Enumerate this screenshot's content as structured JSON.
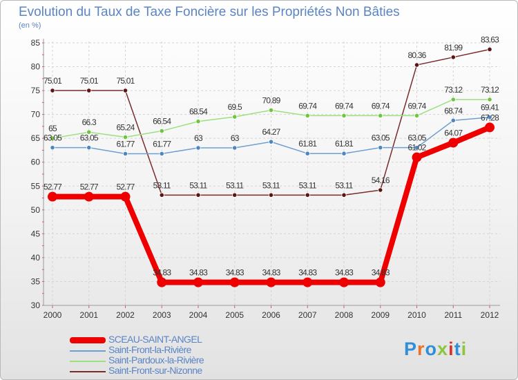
{
  "title": "Evolution du Taux de Taxe Foncière sur les Propriétés Non Bâties",
  "unit_label": "(en %)",
  "logo": {
    "text": "Proxiti",
    "colors": [
      "#2f8fd6",
      "#e8742a",
      "#2f8fd6",
      "#8cc63f",
      "#d9302a",
      "#2f8fd6",
      "#8cc63f"
    ]
  },
  "chart_data": {
    "type": "line",
    "x": [
      "2000",
      "2001",
      "2002",
      "2003",
      "2004",
      "2005",
      "2006",
      "2007",
      "2008",
      "2009",
      "2010",
      "2011",
      "2012"
    ],
    "ylim": [
      30,
      85
    ],
    "yticks": [
      30,
      35,
      40,
      45,
      50,
      55,
      60,
      65,
      70,
      75,
      80,
      85
    ],
    "grid": true,
    "series": [
      {
        "name": "SCEAU-SAINT-ANGEL",
        "color": "#ee0000",
        "dot": "#ee0000",
        "thick": true,
        "values": [
          52.77,
          52.77,
          52.77,
          34.83,
          34.83,
          34.83,
          34.83,
          34.83,
          34.83,
          34.83,
          61.02,
          64.07,
          67.28
        ],
        "labels": [
          "52.77",
          "52.77",
          "52.77",
          "34.83",
          "34.83",
          "34.83",
          "34.83",
          "34.83",
          "34.83",
          "34.83",
          "61.02",
          "64.07",
          "67.28"
        ]
      },
      {
        "name": "Saint-Front-la-Rivière",
        "color": "#6d9fd0",
        "dot": "#4f86c2",
        "values": [
          63.05,
          63.05,
          61.77,
          61.77,
          63,
          63,
          64.27,
          61.81,
          61.81,
          63.05,
          63.05,
          68.74,
          69.41
        ],
        "labels": [
          "63.05",
          "63.05",
          "61.77",
          "61.77",
          "63",
          "63",
          "64.27",
          "61.81",
          "61.81",
          "63.05",
          "63.05",
          "68.74",
          "69.41"
        ]
      },
      {
        "name": "Saint-Pardoux-la-Rivière",
        "color": "#9be07e",
        "dot": "#6fc441",
        "values": [
          65,
          66.3,
          65.24,
          66.54,
          68.54,
          69.5,
          70.89,
          69.74,
          69.74,
          69.74,
          69.74,
          73.12,
          73.12
        ],
        "labels": [
          "65",
          "66.3",
          "65.24",
          "66.54",
          "68.54",
          "69.5",
          "70.89",
          "69.74",
          "69.74",
          "69.74",
          "69.74",
          "73.12",
          "73.12"
        ]
      },
      {
        "name": "Saint-Front-sur-Nizonne",
        "color": "#7a2a2a",
        "dot": "#5a1515",
        "values": [
          75.01,
          75.01,
          75.01,
          53.11,
          53.11,
          53.11,
          53.11,
          53.11,
          53.11,
          54.16,
          80.36,
          81.99,
          83.63
        ],
        "labels": [
          "75.01",
          "75.01",
          "75.01",
          "53.11",
          "53.11",
          "53.11",
          "53.11",
          "53.11",
          "53.11",
          "54.16",
          "80.36",
          "81.99",
          "83.63"
        ]
      }
    ]
  }
}
